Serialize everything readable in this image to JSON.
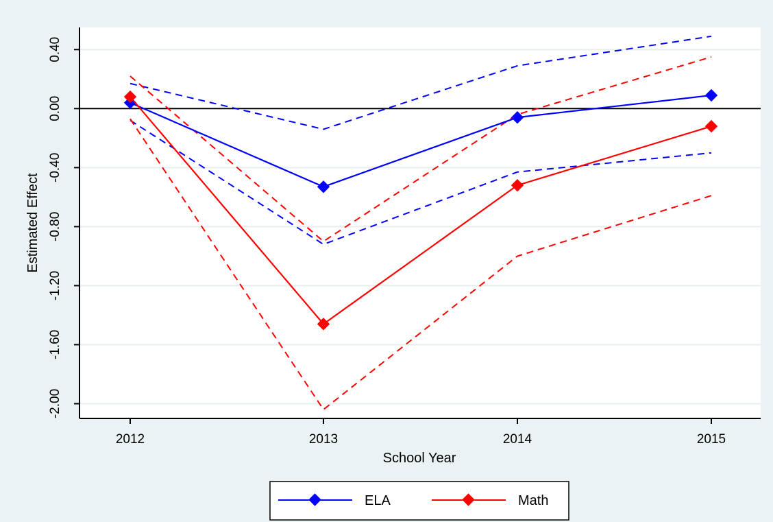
{
  "chart_data": {
    "type": "line",
    "title": "",
    "xlabel": "School Year",
    "ylabel": "Estimated Effect",
    "x": [
      2012,
      2013,
      2014,
      2015
    ],
    "x_tick_labels": [
      "2012",
      "2013",
      "2014",
      "2015"
    ],
    "ylim": [
      -2.1,
      0.55
    ],
    "y_ticks": [
      0.4,
      0.0,
      -0.4,
      -0.8,
      -1.2,
      -1.6,
      -2.0
    ],
    "y_tick_labels": [
      "0.40",
      "0.00",
      "-0.40",
      "-0.80",
      "-1.20",
      "-1.60",
      "-2.00"
    ],
    "reference_line": 0,
    "grid": true,
    "legend_position": "bottom",
    "series": [
      {
        "name": "ELA",
        "color": "#0000ff",
        "values": [
          0.04,
          -0.53,
          -0.06,
          0.09
        ],
        "ci_upper": [
          0.17,
          -0.14,
          0.29,
          0.49
        ],
        "ci_lower": [
          -0.08,
          -0.92,
          -0.43,
          -0.3
        ]
      },
      {
        "name": "Math",
        "color": "#ff0000",
        "values": [
          0.08,
          -1.46,
          -0.52,
          -0.12
        ],
        "ci_upper": [
          0.22,
          -0.9,
          -0.04,
          0.35
        ],
        "ci_lower": [
          -0.07,
          -2.04,
          -1.0,
          -0.59
        ]
      }
    ]
  }
}
